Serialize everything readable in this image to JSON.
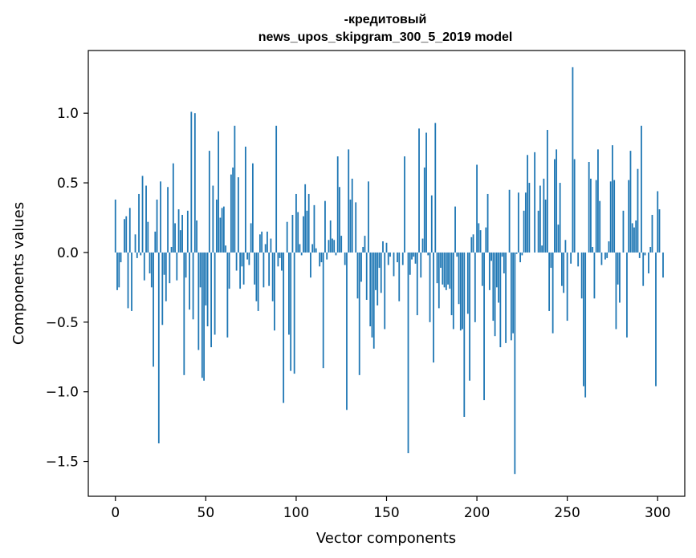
{
  "chart_data": {
    "type": "bar",
    "title_line1": "-кредитовый",
    "title_line2": "news_upos_skipgram_300_5_2019 model",
    "xlabel": "Vector components",
    "ylabel": "Components values",
    "xlim": [
      -15,
      315
    ],
    "ylim": [
      -1.75,
      1.45
    ],
    "xticks": [
      0,
      50,
      100,
      150,
      200,
      250,
      300
    ],
    "xtick_labels": [
      "0",
      "50",
      "100",
      "150",
      "200",
      "250",
      "300"
    ],
    "yticks": [
      -1.5,
      -1.0,
      -0.5,
      0.0,
      0.5,
      1.0
    ],
    "ytick_labels": [
      "−1.5",
      "−1.0",
      "−0.5",
      "0.0",
      "0.5",
      "1.0"
    ],
    "bar_color": "#1f77b4",
    "values": [
      0.38,
      -0.27,
      -0.25,
      -0.07,
      0.0,
      0.24,
      0.26,
      -0.4,
      0.32,
      -0.42,
      0.0,
      0.13,
      -0.04,
      0.42,
      -0.02,
      0.55,
      -0.2,
      0.48,
      0.22,
      -0.15,
      -0.25,
      -0.82,
      0.15,
      0.38,
      -1.37,
      0.51,
      -0.52,
      -0.16,
      -0.35,
      0.47,
      -0.22,
      0.04,
      0.64,
      0.21,
      -0.2,
      0.31,
      0.16,
      0.27,
      -0.88,
      -0.18,
      0.3,
      -0.41,
      1.01,
      -0.48,
      1.0,
      0.23,
      -0.7,
      -0.25,
      -0.9,
      -0.92,
      -0.38,
      -0.53,
      0.73,
      -0.68,
      0.48,
      -0.59,
      0.38,
      0.87,
      0.25,
      0.32,
      0.33,
      0.05,
      -0.61,
      -0.26,
      0.56,
      0.61,
      0.91,
      -0.13,
      0.54,
      -0.26,
      -0.1,
      -0.23,
      0.76,
      -0.05,
      -0.09,
      0.21,
      0.64,
      -0.23,
      -0.35,
      -0.42,
      0.13,
      0.15,
      -0.25,
      0.06,
      0.15,
      -0.24,
      0.1,
      -0.35,
      -0.56,
      0.91,
      -0.1,
      -0.04,
      -0.13,
      -1.08,
      0.0,
      0.22,
      -0.59,
      -0.85,
      0.27,
      -0.87,
      0.42,
      0.29,
      0.06,
      -0.02,
      0.26,
      0.49,
      0.3,
      0.42,
      -0.18,
      0.06,
      0.34,
      0.03,
      0.0,
      -0.1,
      -0.07,
      -0.83,
      0.37,
      -0.05,
      0.09,
      0.23,
      0.1,
      0.09,
      -0.02,
      0.69,
      0.47,
      0.12,
      0.0,
      -0.09,
      -1.13,
      0.74,
      0.38,
      0.53,
      0.0,
      0.36,
      -0.33,
      -0.88,
      -0.21,
      0.04,
      0.12,
      -0.34,
      0.51,
      -0.53,
      -0.61,
      -0.69,
      -0.27,
      -0.38,
      -0.11,
      -0.29,
      0.08,
      -0.55,
      0.07,
      -0.09,
      -0.03,
      0.0,
      -0.17,
      0.0,
      -0.07,
      -0.35,
      0.0,
      -0.09,
      0.69,
      0.0,
      -1.44,
      -0.16,
      -0.05,
      -0.03,
      -0.08,
      -0.45,
      0.89,
      -0.18,
      0.1,
      0.61,
      0.86,
      -0.02,
      -0.5,
      0.41,
      -0.79,
      0.93,
      -0.22,
      -0.4,
      -0.11,
      -0.23,
      -0.25,
      -0.27,
      -0.23,
      -0.26,
      -0.45,
      -0.55,
      0.33,
      -0.03,
      -0.37,
      -0.56,
      -0.55,
      -1.18,
      0.0,
      -0.44,
      -0.92,
      0.11,
      0.13,
      -0.5,
      0.63,
      0.21,
      0.16,
      -0.24,
      -1.06,
      0.18,
      0.42,
      -0.27,
      -0.06,
      -0.49,
      -0.6,
      -0.25,
      -0.36,
      -0.68,
      -0.03,
      -0.15,
      -0.65,
      0.0,
      0.45,
      -0.63,
      -0.58,
      -1.59,
      -0.01,
      0.43,
      -0.07,
      -0.02,
      0.3,
      0.43,
      0.7,
      0.5,
      0.0,
      0.0,
      0.72,
      0.0,
      0.3,
      0.48,
      0.05,
      0.53,
      0.38,
      0.88,
      -0.42,
      -0.11,
      -0.58,
      0.67,
      0.74,
      0.2,
      0.5,
      -0.24,
      -0.29,
      0.09,
      -0.49,
      0.0,
      -0.08,
      1.33,
      0.67,
      0.0,
      -0.1,
      0.0,
      -0.33,
      -0.96,
      -1.04,
      0.0,
      0.65,
      0.53,
      0.04,
      -0.33,
      0.52,
      0.74,
      0.37,
      -0.09,
      0.0,
      -0.05,
      -0.04,
      0.08,
      0.51,
      0.77,
      0.52,
      -0.55,
      -0.23,
      -0.36,
      0.0,
      0.3,
      0.0,
      -0.61,
      0.52,
      0.73,
      0.21,
      0.18,
      0.23,
      0.6,
      -0.04,
      0.91,
      -0.24,
      -0.02,
      0.0,
      -0.15,
      0.04,
      0.27,
      0.0,
      -0.96,
      0.44,
      0.31,
      0.0,
      -0.18,
      0.0,
      0.0,
      0.0,
      0.0,
      0.0,
      0.0
    ]
  }
}
